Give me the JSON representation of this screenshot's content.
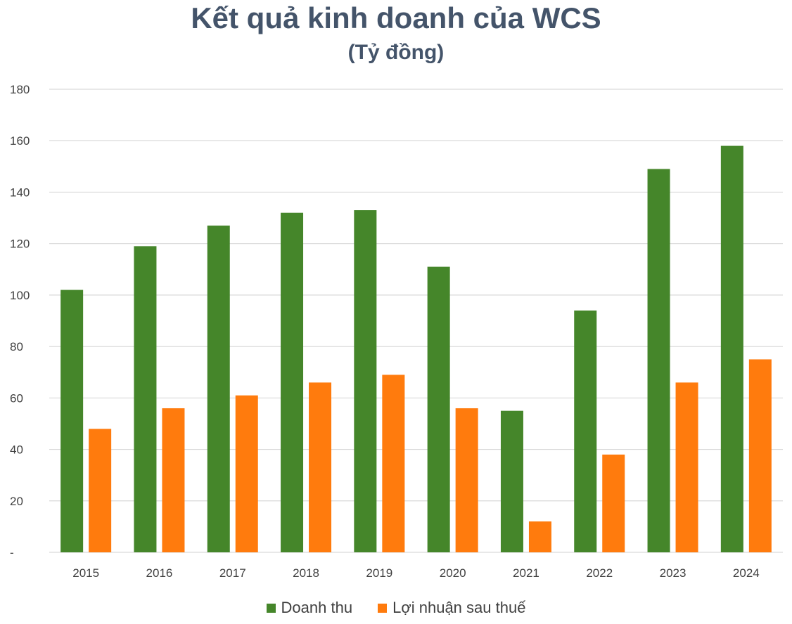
{
  "chart_data": {
    "type": "bar",
    "title": "Kết quả kinh doanh của WCS",
    "subtitle": "(Tỷ đồng)",
    "categories": [
      "2015",
      "2016",
      "2017",
      "2018",
      "2019",
      "2020",
      "2021",
      "2022",
      "2023",
      "2024"
    ],
    "series": [
      {
        "name": "Doanh thu",
        "color": "#45862a",
        "values": [
          102,
          119,
          127,
          132,
          133,
          111,
          55,
          94,
          149,
          158
        ]
      },
      {
        "name": "Lợi nhuận sau thuế",
        "color": "#ff7b0d",
        "values": [
          48,
          56,
          61,
          66,
          69,
          56,
          12,
          38,
          66,
          75
        ]
      }
    ],
    "ylim": [
      0,
      180
    ],
    "yticks": [
      0,
      20,
      40,
      60,
      80,
      100,
      120,
      140,
      160,
      180
    ],
    "ytick_labels": [
      "-",
      "20",
      "40",
      "60",
      "80",
      "100",
      "120",
      "140",
      "160",
      "180"
    ],
    "xlabel": "",
    "ylabel": "",
    "grid": true,
    "legend_position": "bottom"
  }
}
